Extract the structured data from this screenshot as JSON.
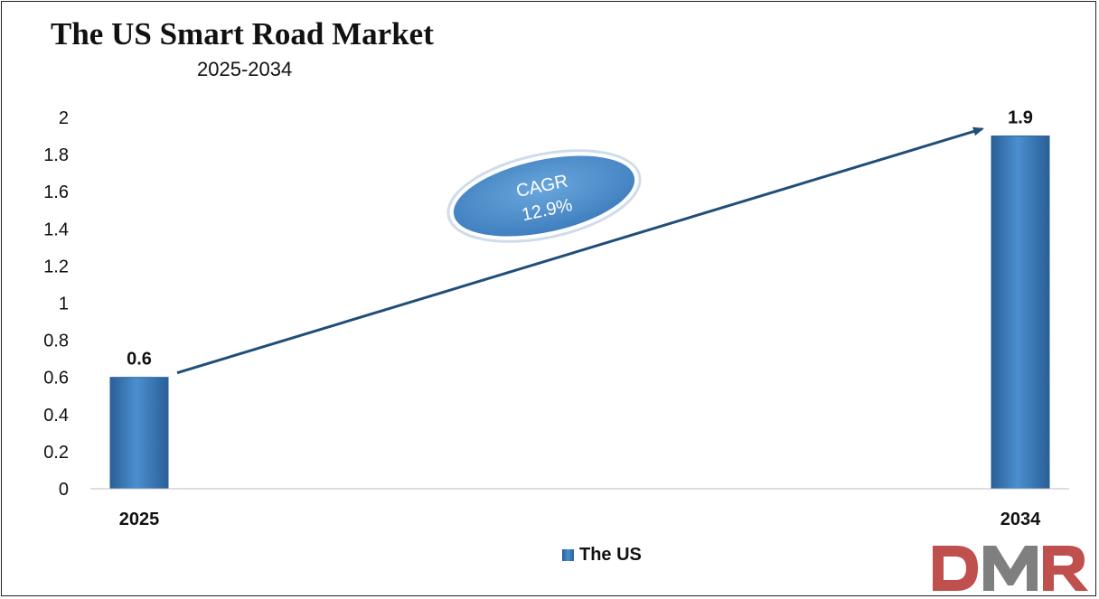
{
  "chart_data": {
    "type": "bar",
    "title": "The US Smart Road Market",
    "subtitle": "2025-2034",
    "categories": [
      "2025",
      "2034"
    ],
    "series": [
      {
        "name": "The US",
        "values": [
          0.6,
          1.9
        ]
      }
    ],
    "data_labels": [
      "0.6",
      "1.9"
    ],
    "y_ticks": [
      "0",
      "0.2",
      "0.4",
      "0.6",
      "0.8",
      "1",
      "1.2",
      "1.4",
      "1.6",
      "1.8",
      "2"
    ],
    "ylim": [
      0,
      2
    ],
    "grid": false,
    "legend": "bottom-center",
    "annotation": {
      "label": "CAGR",
      "value": "12.9%"
    },
    "colors": {
      "bar": "#3b7ac0",
      "arrow": "#1f4e79",
      "ellipse": "#5b9bd5"
    }
  },
  "logo": {
    "text": "DMR",
    "colors": [
      "#c0504d",
      "#7f7f7f"
    ]
  }
}
